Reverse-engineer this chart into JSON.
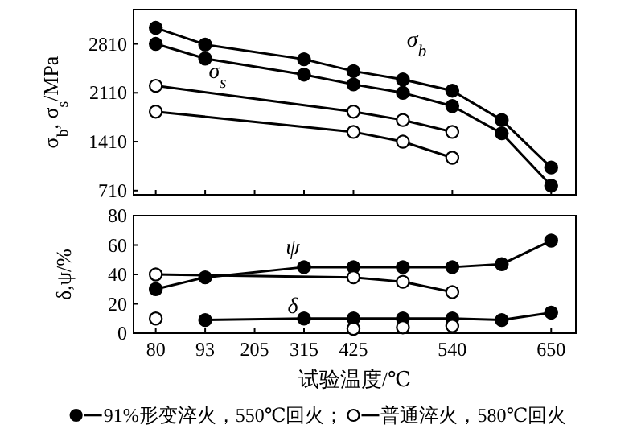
{
  "chart_data": [
    {
      "type": "line",
      "ylabel": "σ$_{b}$, σ$_{s}$/MPa",
      "categories": [
        "80",
        "93",
        "205",
        "315",
        "425",
        null,
        "540",
        null,
        "650"
      ],
      "ylim": [
        650,
        3300
      ],
      "yticks": [
        710,
        1410,
        2110,
        2810
      ],
      "tick_labels": "y",
      "marker": "circle",
      "line_style": "solid",
      "series": [
        {
          "color": "#000000",
          "colors": [
            "#000000",
            "#000000",
            null,
            "#000000",
            "#000000",
            "#000000",
            "#000000",
            "#000000",
            "#000000"
          ],
          "values": [
            3040,
            2800,
            null,
            2590,
            2420,
            2300,
            2140,
            1720,
            1040
          ]
        },
        {
          "color": "#000000",
          "colors": [
            "#000000",
            "#000000",
            null,
            "#000000",
            "#000000",
            "#000000",
            "#000000",
            "#000000",
            "#000000"
          ],
          "values": [
            2810,
            2600,
            null,
            2370,
            2230,
            2110,
            1920,
            1530,
            780
          ]
        },
        {
          "color": "#000000",
          "colors": [
            "#ffffff",
            null,
            null,
            null,
            "#ffffff",
            "#ffffff",
            "#ffffff",
            null,
            null
          ],
          "values": [
            2210,
            null,
            null,
            null,
            1840,
            1720,
            1550,
            null,
            null
          ]
        },
        {
          "color": "#000000",
          "colors": [
            "#ffffff",
            null,
            null,
            null,
            "#ffffff",
            "#ffffff",
            "#ffffff",
            null,
            null
          ],
          "values": [
            1840,
            null,
            null,
            null,
            1550,
            1410,
            1180,
            null,
            null
          ]
        }
      ],
      "annotations": [
        "σ$_{b}$",
        "σ$_{s}$"
      ]
    },
    {
      "type": "line",
      "ylabel": "δ,ψ/%",
      "xlabel": "试验温度/℃",
      "categories": [
        "80",
        "93",
        "205",
        "315",
        "425",
        null,
        "540",
        null,
        "650"
      ],
      "ylim": [
        0,
        80
      ],
      "yticks": [
        0,
        20,
        40,
        60,
        80
      ],
      "marker": "circle",
      "line_style": "solid",
      "legend": "bottom",
      "series": [
        {
          "name": "91%形变淬火，550℃回火；",
          "color": "#000000",
          "colors": [
            "#000000",
            "#000000",
            null,
            "#000000",
            "#000000",
            "#000000",
            "#000000",
            "#000000",
            "#000000"
          ],
          "values": [
            30,
            38,
            null,
            45,
            45,
            45,
            45,
            47,
            63
          ]
        },
        {
          "name": "普通淬火，580℃回火",
          "color": "#000000",
          "colors": [
            "#ffffff",
            null,
            null,
            null,
            "#ffffff",
            "#ffffff",
            "#ffffff",
            null,
            null
          ],
          "values": [
            40,
            null,
            null,
            null,
            38,
            35,
            28,
            null,
            null
          ]
        },
        {
          "color": "#000000",
          "colors": [
            null,
            "#000000",
            null,
            "#000000",
            "#000000",
            "#000000",
            "#000000",
            "#000000",
            "#000000"
          ],
          "values": [
            null,
            9,
            null,
            10,
            10,
            10,
            10,
            9,
            14
          ]
        },
        {
          "type": "scatter",
          "color": "#000000",
          "colors": [
            "#ffffff",
            null,
            null,
            null,
            "#ffffff",
            "#ffffff",
            "#ffffff",
            null,
            null
          ],
          "values": [
            10,
            null,
            null,
            null,
            3,
            4,
            5,
            null,
            null
          ]
        }
      ],
      "annotations": [
        "ψ",
        "δ"
      ]
    }
  ]
}
